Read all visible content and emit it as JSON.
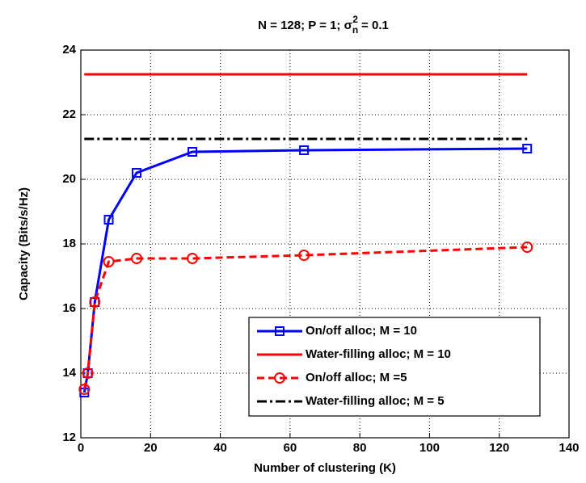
{
  "chart_data": {
    "type": "line",
    "title_parts": [
      "N = 128; P = 1; ",
      "σ",
      "n",
      "2",
      " = 0.1"
    ],
    "xlabel": "Number of clustering (K)",
    "ylabel": "Capacity (Bits/s/Hz)",
    "x": [
      1,
      2,
      4,
      8,
      16,
      32,
      64,
      128
    ],
    "series": [
      {
        "name": "On/off alloc; M = 10",
        "color": "#0000ff",
        "style": "solid",
        "marker": "square",
        "values": [
          13.4,
          14.0,
          16.2,
          18.75,
          20.2,
          20.85,
          20.9,
          20.95
        ]
      },
      {
        "name": "Water-filling alloc; M = 10",
        "color": "#ff0000",
        "style": "solid",
        "marker": "none",
        "values": [
          23.25,
          23.25,
          23.25,
          23.25,
          23.25,
          23.25,
          23.25,
          23.25
        ]
      },
      {
        "name": "On/off alloc; M =5",
        "color": "#ff0000",
        "style": "dashed",
        "marker": "circle",
        "values": [
          13.5,
          14.0,
          16.2,
          17.45,
          17.55,
          17.55,
          17.65,
          17.9
        ]
      },
      {
        "name": "Water-filling alloc; M = 5",
        "color": "#000000",
        "style": "dashdot",
        "marker": "none",
        "values": [
          21.25,
          21.25,
          21.25,
          21.25,
          21.25,
          21.25,
          21.25,
          21.25
        ]
      }
    ],
    "xlim": [
      0,
      140
    ],
    "xticks": [
      0,
      20,
      40,
      60,
      80,
      100,
      120,
      140
    ],
    "ylim": [
      12,
      24
    ],
    "yticks": [
      12,
      14,
      16,
      18,
      20,
      22,
      24
    ],
    "grid": true,
    "legend": "lower right"
  }
}
